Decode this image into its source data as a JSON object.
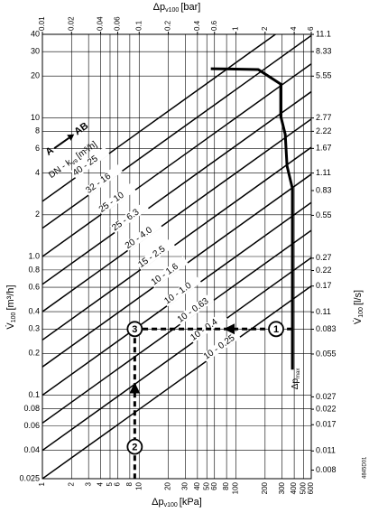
{
  "chart_data": {
    "type": "valve-sizing",
    "top_axis_title": {
      "main": "Δp",
      "sub": "v100",
      "unit": "[bar]"
    },
    "bottom_axis_title": {
      "main": "Δp",
      "sub": "v100",
      "unit": "[kPa]"
    },
    "left_axis_title": {
      "main": "V̇",
      "sub": "100",
      "unit": "[m³/h]"
    },
    "right_axis_title": {
      "main": "V̇",
      "sub": "100",
      "unit": "[l/s]"
    },
    "xlim": [
      1,
      600
    ],
    "xticks": [
      1,
      2,
      3,
      4,
      5,
      6,
      8,
      10,
      20,
      30,
      40,
      50,
      60,
      80,
      100,
      200,
      300,
      400,
      500,
      600
    ],
    "x2lim": [
      0.01,
      6
    ],
    "x2ticks": [
      0.01,
      0.02,
      0.04,
      0.06,
      0.1,
      0.2,
      0.4,
      0.6,
      1,
      2,
      4,
      6
    ],
    "ylim": [
      0.025,
      40
    ],
    "yticks": [
      40,
      30,
      20,
      10,
      8,
      6,
      4,
      2,
      {
        "value": 1,
        "label": "1.0"
      },
      0.8,
      0.6,
      0.4,
      0.3,
      0.2,
      0.1,
      0.08,
      0.06,
      0.04,
      0.025
    ],
    "y2lim": [
      0.00694,
      11.11
    ],
    "y2ticks": [
      11.1,
      8.33,
      5.55,
      2.77,
      2.22,
      1.67,
      1.11,
      0.83,
      0.55,
      0.27,
      0.22,
      0.17,
      0.11,
      0.083,
      0.055,
      0.027,
      0.022,
      0.017,
      0.011,
      0.008
    ],
    "grid": true,
    "flow_direction": {
      "from": "A",
      "to": "AB"
    },
    "line_legend": {
      "main": "DN - k",
      "sub": "vs",
      "unit": "[m³/h]"
    },
    "kvs_lines": [
      {
        "label": "40 - 25",
        "kvs": 25
      },
      {
        "label": "32 - 16",
        "kvs": 16
      },
      {
        "label": "25 - 10",
        "kvs": 10
      },
      {
        "label": "25 - 6.3",
        "kvs": 6.3
      },
      {
        "label": "20 - 4.0",
        "kvs": 4.0
      },
      {
        "label": "15 - 2.5",
        "kvs": 2.5
      },
      {
        "label": "10 - 1.6",
        "kvs": 1.6
      },
      {
        "label": "10 - 1.0",
        "kvs": 1.0
      },
      {
        "label": "10 - 0.63",
        "kvs": 0.63
      },
      {
        "label": "10 - 0.4",
        "kvs": 0.4
      },
      {
        "label": "10 - 0.25",
        "kvs": 0.25
      }
    ],
    "max_curve": {
      "x": [
        55,
        170,
        290,
        290,
        323,
        337,
        383,
        383
      ],
      "y": [
        22.6,
        22.3,
        17.5,
        10.3,
        7.6,
        4.5,
        3.1,
        0.153
      ]
    },
    "max_label": {
      "main": "Δp",
      "sub": "max"
    },
    "markers": [
      {
        "label": "1",
        "x": 260,
        "y": 0.3
      },
      {
        "label": "2",
        "x": 9,
        "y": 0.0425
      },
      {
        "label": "3",
        "x": 9,
        "y": 0.3
      }
    ],
    "code": "4845D01"
  }
}
